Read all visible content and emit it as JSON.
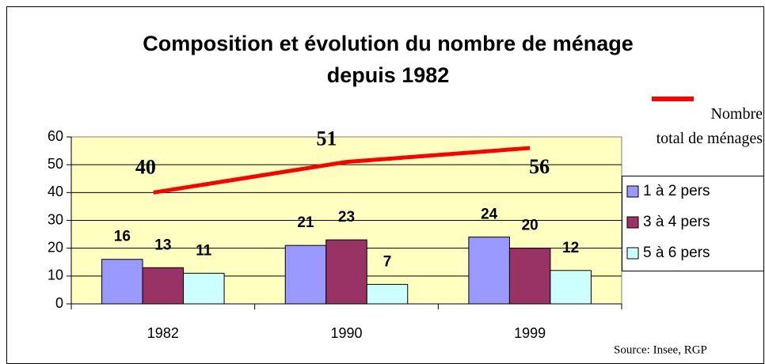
{
  "chart_data": {
    "type": "bar",
    "title": [
      "Composition et évolution du nombre de ménage",
      "depuis 1982"
    ],
    "categories": [
      "1982",
      "1990",
      "1999"
    ],
    "series": [
      {
        "name": "1 à 2 pers",
        "color": "#9999ff",
        "values": [
          16,
          21,
          24
        ]
      },
      {
        "name": "3 à 4 pers",
        "color": "#993366",
        "values": [
          13,
          23,
          20
        ]
      },
      {
        "name": "5 à 6 pers",
        "color": "#ccffff",
        "values": [
          11,
          7,
          12
        ]
      },
      {
        "name": "Nombre total de ménages",
        "type": "line",
        "color": "#ff0000",
        "values": [
          40,
          51,
          56
        ]
      }
    ],
    "ylim": [
      0,
      60
    ],
    "yticks": [
      0,
      10,
      20,
      30,
      40,
      50,
      60
    ],
    "grid": true,
    "legend": "right",
    "source": "Source: Insee, RGP"
  }
}
